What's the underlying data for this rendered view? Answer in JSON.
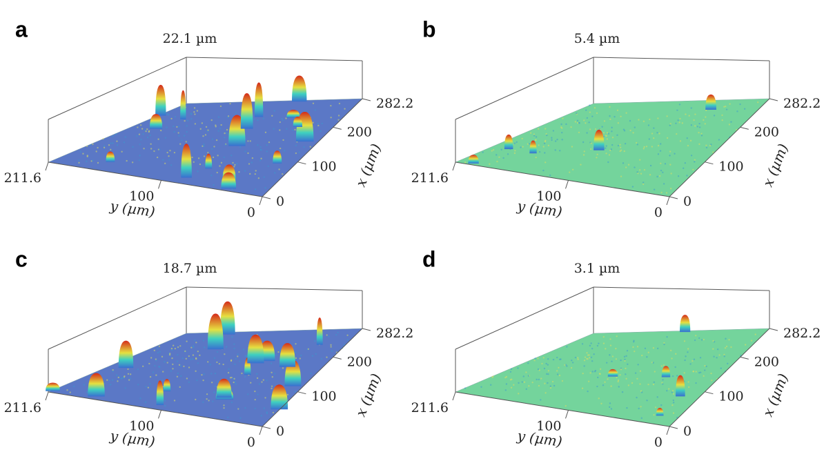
{
  "chart_data": [
    {
      "type": "surface3d",
      "panel": "a",
      "z_label": "22.1 µm",
      "x_label": "x (µm)",
      "y_label": "y (µm)",
      "xticks": [
        0,
        100,
        200,
        282.2
      ],
      "yticks": [
        211.6,
        100,
        0
      ],
      "xlim": [
        0,
        282.2
      ],
      "ylim": [
        0,
        211.6
      ],
      "color": "#5b78c6"
    },
    {
      "type": "surface3d",
      "panel": "b",
      "z_label": "5.4 µm",
      "x_label": "x (µm)",
      "y_label": "y (µm)",
      "xticks": [
        0,
        100,
        200,
        282.2
      ],
      "yticks": [
        211.6,
        100,
        0
      ],
      "xlim": [
        0,
        282.2
      ],
      "ylim": [
        0,
        211.6
      ],
      "color": "#74d49c"
    },
    {
      "type": "surface3d",
      "panel": "c",
      "z_label": "18.7 µm",
      "x_label": "x (µm)",
      "y_label": "y (µm)",
      "xticks": [
        0,
        100,
        200,
        282.2
      ],
      "yticks": [
        211.6,
        100,
        0
      ],
      "xlim": [
        0,
        282.2
      ],
      "ylim": [
        0,
        211.6
      ],
      "color": "#5b78c6"
    },
    {
      "type": "surface3d",
      "panel": "d",
      "z_label": "3.1 µm",
      "x_label": "x (µm)",
      "y_label": "y (µm)",
      "xticks": [
        0,
        100,
        200,
        282.2
      ],
      "yticks": [
        211.6,
        100,
        0
      ],
      "xlim": [
        0,
        282.2
      ],
      "ylim": [
        0,
        211.6
      ],
      "color": "#74d49c"
    }
  ]
}
